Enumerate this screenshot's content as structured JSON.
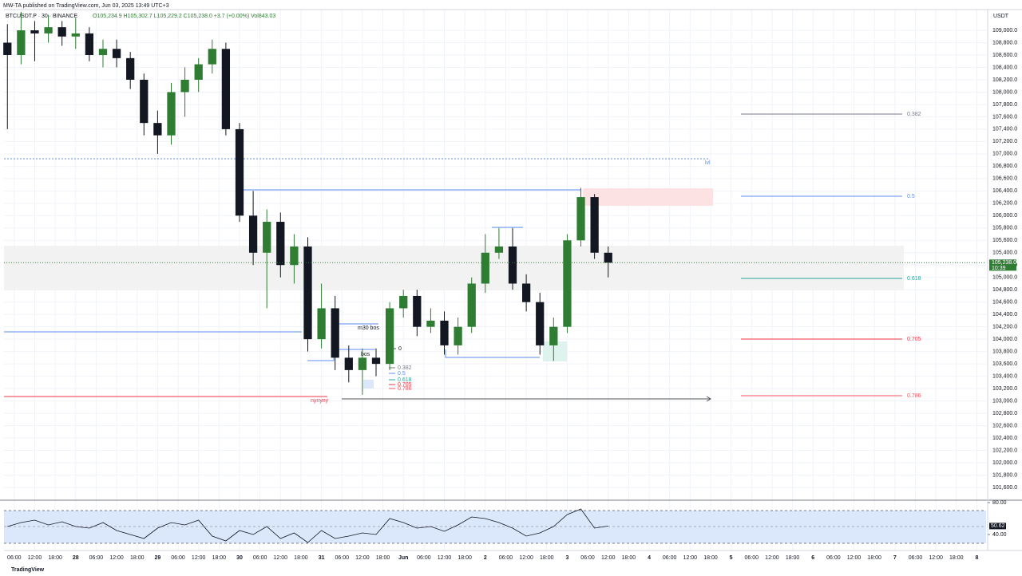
{
  "chart_data": {
    "type": "candlestick",
    "header": "MW-TA published on TradingView.com, Jun 03, 2025 13:49 UTC+3",
    "symbol": "BTCUSDT.P · 30 · BINANCE",
    "ohlc_text": "O105,234.9 H105,302.7 L105,229.2 C105,238.0 +3.7 (+0.00%) Vol843.03",
    "currency": "USDT",
    "brand": "TradingView",
    "up_color": "#2e7d32",
    "down_color": "#131722",
    "x": [
      4,
      8,
      12,
      16,
      20,
      24,
      28,
      32,
      36,
      40,
      44,
      48,
      52,
      56,
      60,
      64,
      68,
      72,
      76,
      80,
      84,
      88,
      92,
      96,
      100,
      104,
      108,
      112,
      116,
      120,
      124,
      128,
      132,
      136,
      140,
      144,
      148,
      152,
      156,
      160,
      164,
      168,
      172,
      176,
      180
    ],
    "open": [
      108800,
      108600,
      109000,
      108950,
      109050,
      108900,
      108950,
      108600,
      108700,
      108550,
      108200,
      107500,
      107300,
      108000,
      108200,
      108450,
      108700,
      107400,
      106000,
      105400,
      105900,
      105200,
      105500,
      104000,
      104500,
      103700,
      103500,
      103700,
      103600,
      104500,
      104700,
      104200,
      104300,
      103900,
      104200,
      104900,
      105400,
      105500,
      104900,
      104600,
      103900,
      104200,
      105600,
      106300,
      105400
    ],
    "high": [
      109100,
      109300,
      109150,
      109250,
      109150,
      109200,
      109050,
      108850,
      108850,
      108650,
      108300,
      107700,
      108150,
      108400,
      108550,
      108850,
      108800,
      107500,
      106400,
      106100,
      106050,
      105700,
      105650,
      104900,
      104700,
      103900,
      103850,
      103850,
      104600,
      104800,
      104800,
      104500,
      104450,
      104350,
      105000,
      105700,
      105800,
      105800,
      105050,
      104750,
      104350,
      105700,
      106450,
      106350,
      105500
    ],
    "low": [
      107400,
      108450,
      108500,
      108800,
      108750,
      108700,
      108500,
      108400,
      108400,
      108050,
      107300,
      107000,
      107150,
      107600,
      108000,
      108300,
      107300,
      105900,
      105200,
      104500,
      105000,
      104900,
      103800,
      103850,
      103500,
      103300,
      103100,
      103400,
      103500,
      104350,
      104050,
      104100,
      103750,
      103750,
      104100,
      104750,
      105300,
      104800,
      104450,
      103750,
      103650,
      104100,
      105500,
      105300,
      105000
    ],
    "close": [
      108600,
      109000,
      108950,
      109050,
      108900,
      108950,
      108600,
      108700,
      108550,
      108200,
      107500,
      107300,
      108000,
      108200,
      108450,
      108700,
      107400,
      106000,
      105400,
      105900,
      105200,
      105500,
      104000,
      104500,
      103700,
      103500,
      103700,
      103600,
      104500,
      104700,
      104200,
      104300,
      103900,
      104200,
      104900,
      105400,
      105500,
      104900,
      104600,
      103900,
      104200,
      105600,
      106300,
      105400,
      105238
    ],
    "last_price": {
      "value": 105238,
      "label": "105,238.0"
    },
    "countdown": "10:39",
    "xlim": [
      3,
      290.7
    ],
    "ylim": [
      101406,
      109336
    ],
    "grid": true,
    "yticks": [
      {
        "value": 101600,
        "label": "101,600.0"
      },
      {
        "value": 101800,
        "label": "101,800.0"
      },
      {
        "value": 102000,
        "label": "102,000.0"
      },
      {
        "value": 102200,
        "label": "102,200.0"
      },
      {
        "value": 102400,
        "label": "102,400.0"
      },
      {
        "value": 102600,
        "label": "102,600.0"
      },
      {
        "value": 102800,
        "label": "102,800.0"
      },
      {
        "value": 103000,
        "label": "103,000.0"
      },
      {
        "value": 103200,
        "label": "103,200.0"
      },
      {
        "value": 103400,
        "label": "103,400.0"
      },
      {
        "value": 103600,
        "label": "103,600.0"
      },
      {
        "value": 103800,
        "label": "103,800.0"
      },
      {
        "value": 104000,
        "label": "104,000.0"
      },
      {
        "value": 104200,
        "label": "104,200.0"
      },
      {
        "value": 104400,
        "label": "104,400.0"
      },
      {
        "value": 104600,
        "label": "104,600.0"
      },
      {
        "value": 104800,
        "label": "104,800.0"
      },
      {
        "value": 105000,
        "label": "105,000.0"
      },
      {
        "value": 105200,
        "label": "105,200.0"
      },
      {
        "value": 105400,
        "label": "105,400.0"
      },
      {
        "value": 105600,
        "label": "105,600.0"
      },
      {
        "value": 105800,
        "label": "105,800.0"
      },
      {
        "value": 106000,
        "label": "106,000.0"
      },
      {
        "value": 106200,
        "label": "106,200.0"
      },
      {
        "value": 106400,
        "label": "106,400.0"
      },
      {
        "value": 106600,
        "label": "106,600.0"
      },
      {
        "value": 106800,
        "label": "106,800.0"
      },
      {
        "value": 107000,
        "label": "107,000.0"
      },
      {
        "value": 107200,
        "label": "107,200.0"
      },
      {
        "value": 107400,
        "label": "107,400.0"
      },
      {
        "value": 107600,
        "label": "107,600.0"
      },
      {
        "value": 107800,
        "label": "107,800.0"
      },
      {
        "value": 108000,
        "label": "108,000.0"
      },
      {
        "value": 108200,
        "label": "108,200.0"
      },
      {
        "value": 108400,
        "label": "108,400.0"
      },
      {
        "value": 108600,
        "label": "108,600.0"
      },
      {
        "value": 108800,
        "label": "108,800.0"
      },
      {
        "value": 109000,
        "label": "109,000.0"
      }
    ],
    "xticks": [
      {
        "value": 6,
        "label": "06:00"
      },
      {
        "value": 12,
        "label": "12:00"
      },
      {
        "value": 18,
        "label": "18:00"
      },
      {
        "value": 24,
        "label": "28"
      },
      {
        "value": 30,
        "label": "06:00"
      },
      {
        "value": 36,
        "label": "12:00"
      },
      {
        "value": 42,
        "label": "18:00"
      },
      {
        "value": 48,
        "label": "29"
      },
      {
        "value": 54,
        "label": "06:00"
      },
      {
        "value": 60,
        "label": "12:00"
      },
      {
        "value": 66,
        "label": "18:00"
      },
      {
        "value": 72,
        "label": "30"
      },
      {
        "value": 78,
        "label": "06:00"
      },
      {
        "value": 84,
        "label": "12:00"
      },
      {
        "value": 90,
        "label": "18:00"
      },
      {
        "value": 96,
        "label": "31"
      },
      {
        "value": 102,
        "label": "06:00"
      },
      {
        "value": 108,
        "label": "12:00"
      },
      {
        "value": 114,
        "label": "18:00"
      },
      {
        "value": 120,
        "label": "Jun"
      },
      {
        "value": 126,
        "label": "06:00"
      },
      {
        "value": 132,
        "label": "12:00"
      },
      {
        "value": 138,
        "label": "18:00"
      },
      {
        "value": 144,
        "label": "2"
      },
      {
        "value": 150,
        "label": "06:00"
      },
      {
        "value": 156,
        "label": "12:00"
      },
      {
        "value": 162,
        "label": "18:00"
      },
      {
        "value": 168,
        "label": "3"
      },
      {
        "value": 174,
        "label": "06:00"
      },
      {
        "value": 180,
        "label": "12:00"
      },
      {
        "value": 186,
        "label": "18:00"
      },
      {
        "value": 192,
        "label": "4"
      },
      {
        "value": 198,
        "label": "06:00"
      },
      {
        "value": 204,
        "label": "12:00"
      },
      {
        "value": 210,
        "label": "18:00"
      },
      {
        "value": 216,
        "label": "5"
      },
      {
        "value": 222,
        "label": "06:00"
      },
      {
        "value": 228,
        "label": "12:00"
      },
      {
        "value": 234,
        "label": "18:00"
      },
      {
        "value": 240,
        "label": "6"
      },
      {
        "value": 246,
        "label": "06:00"
      },
      {
        "value": 252,
        "label": "12:00"
      },
      {
        "value": 258,
        "label": "18:00"
      },
      {
        "value": 264,
        "label": "7"
      },
      {
        "value": 270,
        "label": "06:00"
      },
      {
        "value": 276,
        "label": "12:00"
      },
      {
        "value": 282,
        "label": "18:00"
      },
      {
        "value": 288,
        "label": "8"
      }
    ],
    "annotations": {
      "m30_bos": "m30 bos",
      "bos": "bos",
      "zero": "0",
      "lvl": "lvl",
      "nynyny": "nynyny",
      "fib_small": [
        "0.382",
        "0.5",
        "0.618",
        "0.705",
        "0.786"
      ],
      "fib_right": [
        "0.382",
        "0.5",
        "0.618",
        "0.705",
        "0.786"
      ]
    },
    "rsi": {
      "color": "#131722",
      "ylim": [
        20,
        83
      ],
      "yticks": [
        {
          "value": 80,
          "label": "80.00"
        },
        {
          "value": 40,
          "label": "40.00"
        }
      ],
      "values": [
        50,
        55,
        58,
        52,
        56,
        50,
        48,
        55,
        45,
        40,
        35,
        48,
        55,
        52,
        58,
        38,
        32,
        45,
        40,
        50,
        35,
        42,
        30,
        45,
        35,
        38,
        42,
        40,
        60,
        55,
        48,
        50,
        44,
        52,
        62,
        60,
        55,
        48,
        38,
        42,
        50,
        65,
        72,
        48,
        50.62
      ],
      "last_label": "50.62"
    }
  }
}
